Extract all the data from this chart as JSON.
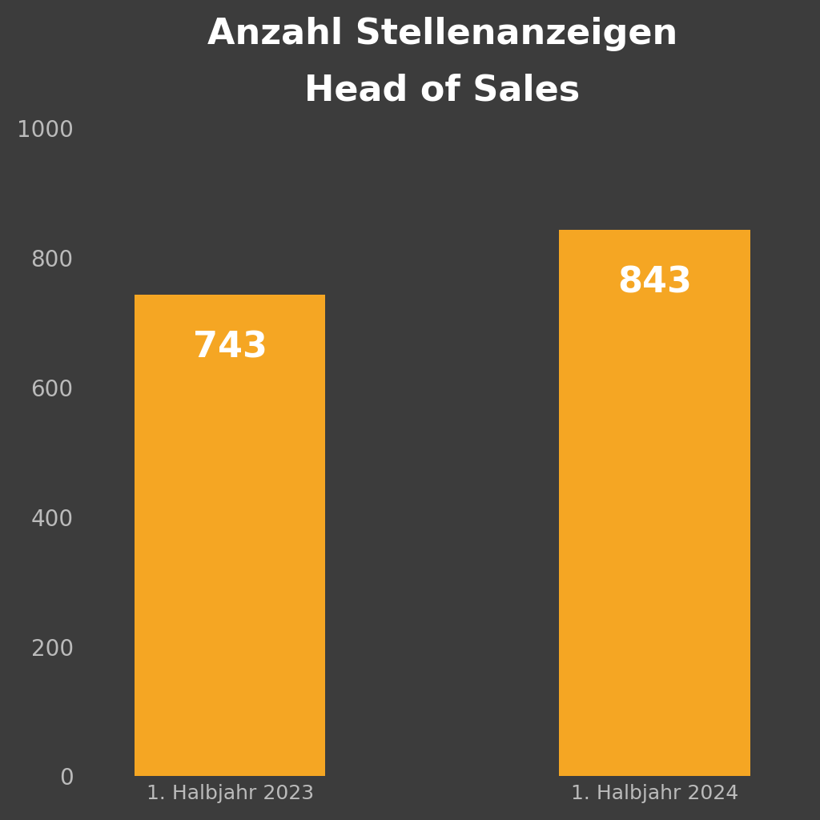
{
  "title_line1": "Anzahl Stellenanzeigen",
  "title_line2": "Head of Sales",
  "categories": [
    "1. Halbjahr 2023",
    "1. Halbjahr 2024"
  ],
  "values": [
    743,
    843
  ],
  "bar_color": "#F5A623",
  "background_color": "#3C3C3C",
  "text_color": "#FFFFFF",
  "tick_color": "#BBBBBB",
  "ylim": [
    0,
    1000
  ],
  "yticks": [
    0,
    200,
    400,
    600,
    800,
    1000
  ],
  "title_fontsize": 32,
  "tick_fontsize": 20,
  "xlabel_fontsize": 18,
  "bar_label_fontsize": 32,
  "bar_positions": [
    1,
    3
  ],
  "bar_width": 0.9
}
